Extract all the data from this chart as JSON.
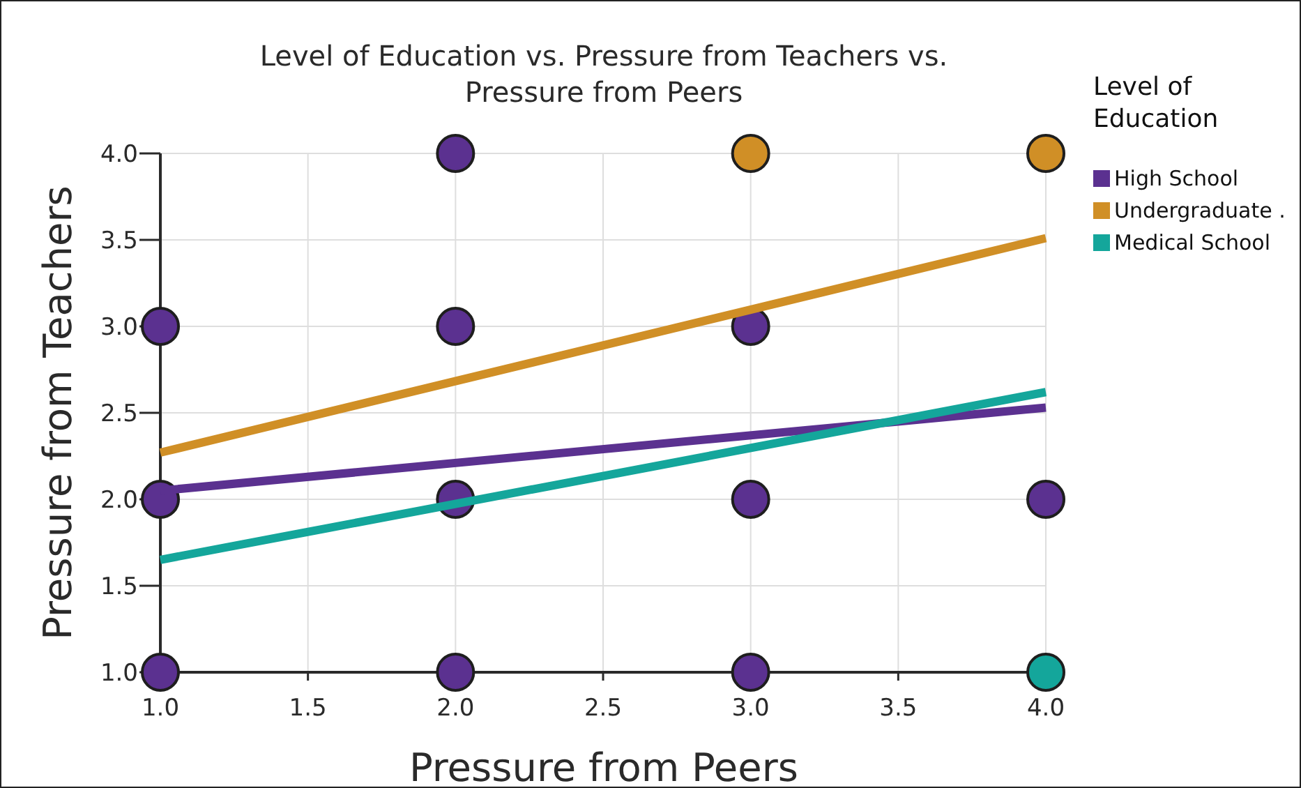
{
  "chart_data": {
    "type": "scatter",
    "title": "Level of Education vs. Pressure from Teachers vs. Pressure from Peers",
    "xlabel": "Pressure from Peers",
    "ylabel": "Pressure from Teachers",
    "legend_title": "Level of Education",
    "xlim": [
      1,
      4
    ],
    "ylim": [
      1,
      4
    ],
    "xticks": [
      {
        "value": 1,
        "label": "1.0"
      },
      {
        "value": 1.5,
        "label": "1.5"
      },
      {
        "value": 2,
        "label": "2.0"
      },
      {
        "value": 2.5,
        "label": "2.5"
      },
      {
        "value": 3,
        "label": "3.0"
      },
      {
        "value": 3.5,
        "label": "3.5"
      },
      {
        "value": 4,
        "label": "4.0"
      }
    ],
    "yticks": [
      {
        "value": 1,
        "label": "1.0"
      },
      {
        "value": 1.5,
        "label": "1.5"
      },
      {
        "value": 2,
        "label": "2.0"
      },
      {
        "value": 2.5,
        "label": "2.5"
      },
      {
        "value": 3,
        "label": "3.0"
      },
      {
        "value": 3.5,
        "label": "3.5"
      },
      {
        "value": 4,
        "label": "4.0"
      }
    ],
    "grid": true,
    "legend": "top right",
    "series": [
      {
        "name": "High School",
        "marker": "circle",
        "color": "#5b3190",
        "x": [
          1,
          1,
          1,
          2,
          2,
          2,
          2,
          3,
          3,
          3,
          4
        ],
        "values": [
          3,
          2,
          1,
          4,
          3,
          2,
          1,
          3,
          2,
          1,
          2
        ]
      },
      {
        "name": "Undergraduate .",
        "marker": "circle",
        "color": "#d08f26",
        "x": [
          3,
          4
        ],
        "values": [
          4,
          4
        ]
      },
      {
        "name": "Medical School",
        "marker": "circle",
        "color": "#14a69b",
        "x": [
          4
        ],
        "values": [
          1
        ]
      },
      {
        "type": "line",
        "color": "#5b3190",
        "x": [
          1,
          4
        ],
        "values": [
          2.05,
          2.53
        ]
      },
      {
        "type": "line",
        "color": "#d08f26",
        "x": [
          1,
          4
        ],
        "values": [
          2.27,
          3.51
        ]
      },
      {
        "type": "line",
        "color": "#14a69b",
        "x": [
          1,
          4
        ],
        "values": [
          1.65,
          2.62
        ]
      }
    ]
  }
}
